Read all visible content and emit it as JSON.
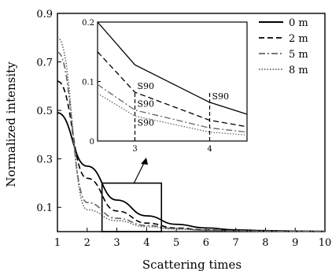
{
  "chart_data": [
    {
      "type": "line",
      "xlabel": "Scattering times",
      "ylabel": "Normalized intensity",
      "xlim": [
        1,
        10
      ],
      "ylim": [
        0,
        0.9
      ],
      "xticks": [
        "1",
        "2",
        "3",
        "4",
        "5",
        "6",
        "7",
        "8",
        "9",
        "10"
      ],
      "yticks": [
        "0.1",
        "0.3",
        "0.5",
        "0.7",
        "0.9"
      ],
      "grid": false,
      "legend_position": "top-right",
      "x": [
        1,
        2,
        3,
        4,
        5,
        6,
        7,
        8,
        9,
        10
      ],
      "series": [
        {
          "name": "0 m",
          "style": "solid",
          "color": "#000000",
          "values": [
            0.49,
            0.27,
            0.13,
            0.065,
            0.03,
            0.015,
            0.007,
            0.004,
            0.002,
            0.001
          ]
        },
        {
          "name": "2 m",
          "style": "dashed",
          "color": "#000000",
          "values": [
            0.62,
            0.22,
            0.085,
            0.035,
            0.015,
            0.007,
            0.004,
            0.002,
            0.001,
            0.001
          ]
        },
        {
          "name": "5 m",
          "style": "dashdot",
          "color": "#666666",
          "values": [
            0.74,
            0.12,
            0.055,
            0.025,
            0.012,
            0.006,
            0.003,
            0.002,
            0.001,
            0.001
          ]
        },
        {
          "name": "8 m",
          "style": "dotted",
          "color": "#666666",
          "values": [
            0.8,
            0.09,
            0.045,
            0.02,
            0.01,
            0.005,
            0.003,
            0.001,
            0.001,
            0.001
          ]
        }
      ]
    },
    {
      "type": "line",
      "title": "",
      "xlim": [
        2.5,
        4.5
      ],
      "ylim": [
        0,
        0.2
      ],
      "xticks": [
        "3",
        "4"
      ],
      "yticks": [
        "0",
        "0.1",
        "0.2"
      ],
      "x": [
        2.5,
        3,
        4,
        4.5
      ],
      "series": [
        {
          "name": "0 m",
          "style": "solid",
          "values": [
            0.2,
            0.128,
            0.065,
            0.045
          ]
        },
        {
          "name": "2 m",
          "style": "dashed",
          "values": [
            0.15,
            0.082,
            0.035,
            0.024
          ]
        },
        {
          "name": "5 m",
          "style": "dashdot",
          "values": [
            0.095,
            0.052,
            0.022,
            0.015
          ]
        },
        {
          "name": "8 m",
          "style": "dotted",
          "values": [
            0.08,
            0.042,
            0.015,
            0.01
          ]
        }
      ],
      "annotations": [
        {
          "text": "S90",
          "x": 3,
          "y": 0.082
        },
        {
          "text": "S90",
          "x": 3,
          "y": 0.052
        },
        {
          "text": "S90",
          "x": 3,
          "y": 0.042
        },
        {
          "text": "S90",
          "x": 4,
          "y": 0.065
        }
      ],
      "markers": [
        {
          "x": 3,
          "style": "dashed"
        },
        {
          "x": 4,
          "style": "dashed"
        }
      ]
    }
  ]
}
